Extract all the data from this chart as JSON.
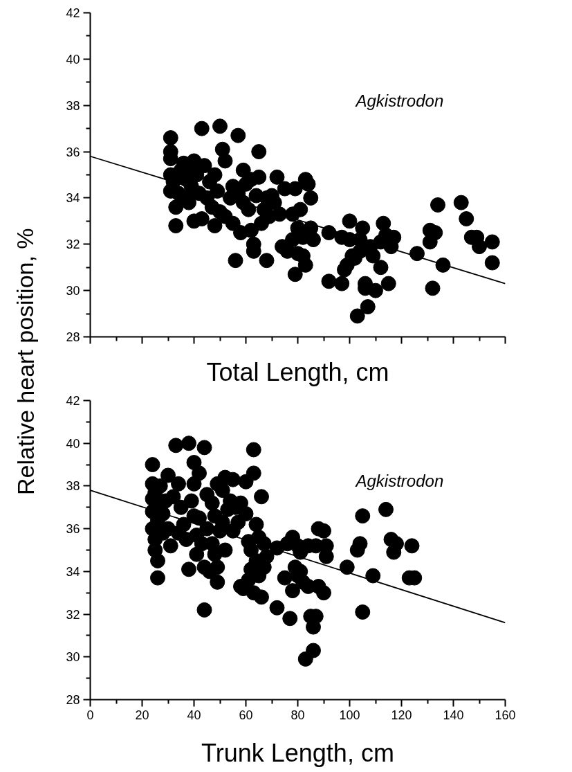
{
  "chart_data": [
    {
      "type": "scatter",
      "xlabel": "Total Length, cm",
      "ylabel": "Relative heart position, %",
      "annotations": [
        "Agkistrodon"
      ],
      "xlim": [
        0,
        160
      ],
      "ylim": [
        28,
        42
      ],
      "xticks": [
        0,
        20,
        40,
        60,
        80,
        100,
        120,
        140,
        160
      ],
      "yticks": [
        28,
        30,
        32,
        34,
        36,
        38,
        40,
        42
      ],
      "tick_labels": "y",
      "grid": false,
      "series": [
        {
          "marker": "circle",
          "color": "#000000",
          "x": [
            31,
            31,
            31,
            31,
            31,
            32,
            33,
            33,
            34,
            35,
            36,
            37,
            37,
            38,
            38,
            39,
            40,
            40,
            41,
            42,
            43,
            43,
            44,
            45,
            46,
            47,
            48,
            48,
            49,
            50,
            50,
            51,
            52,
            52,
            54,
            55,
            55,
            56,
            57,
            57,
            58,
            59,
            59,
            60,
            61,
            62,
            62,
            63,
            63,
            64,
            65,
            65,
            66,
            67,
            68,
            68,
            69,
            70,
            71,
            72,
            73,
            74,
            75,
            76,
            78,
            78,
            79,
            79,
            80,
            80,
            81,
            82,
            82,
            83,
            83,
            84,
            85,
            85,
            86,
            92,
            92,
            97,
            97,
            98,
            99,
            100,
            100,
            101,
            102,
            103,
            104,
            104,
            105,
            106,
            106,
            107,
            108,
            109,
            110,
            112,
            112,
            113,
            114,
            115,
            116,
            117,
            126,
            131,
            131,
            132,
            133,
            134,
            136,
            143,
            145,
            147,
            149,
            150,
            155,
            155
          ],
          "values": [
            36.6,
            36.0,
            35.7,
            35.0,
            34.3,
            34.7,
            33.6,
            32.8,
            34.2,
            35.2,
            35.5,
            34.8,
            34.0,
            35.4,
            33.8,
            34.5,
            35.6,
            33.0,
            35.0,
            34.2,
            37.0,
            33.1,
            35.4,
            34.0,
            34.7,
            33.6,
            35.0,
            32.8,
            34.3,
            37.1,
            33.4,
            36.1,
            35.6,
            33.2,
            34.0,
            34.5,
            32.9,
            31.3,
            36.7,
            34.2,
            32.5,
            35.2,
            33.8,
            34.6,
            33.5,
            32.6,
            34.8,
            32.0,
            31.7,
            34.1,
            36.0,
            34.9,
            32.9,
            33.5,
            31.3,
            34.0,
            33.2,
            34.1,
            33.8,
            34.9,
            33.3,
            31.9,
            34.4,
            31.7,
            33.3,
            32.2,
            30.7,
            34.4,
            32.7,
            31.6,
            33.5,
            31.5,
            32.3,
            34.8,
            31.1,
            34.6,
            32.7,
            34.0,
            32.2,
            30.4,
            32.5,
            30.3,
            32.3,
            30.9,
            31.1,
            33.0,
            32.2,
            31.5,
            31.4,
            28.9,
            31.7,
            32.2,
            32.7,
            30.1,
            30.3,
            29.3,
            31.9,
            31.5,
            30.0,
            31.0,
            32.1,
            32.9,
            32.4,
            30.3,
            31.9,
            32.3,
            31.6,
            32.1,
            32.6,
            30.1,
            32.5,
            33.7,
            31.1,
            33.8,
            33.1,
            32.3,
            32.3,
            31.9,
            32.1,
            31.2
          ]
        },
        {
          "type": "line",
          "color": "#000000",
          "x": [
            0,
            160
          ],
          "values": [
            35.8,
            30.3
          ]
        }
      ]
    },
    {
      "type": "scatter",
      "xlabel": "Trunk Length, cm",
      "annotations": [
        "Agkistrodon"
      ],
      "xlim": [
        0,
        160
      ],
      "ylim": [
        28,
        42
      ],
      "xticks": [
        0,
        20,
        40,
        60,
        80,
        100,
        120,
        140,
        160
      ],
      "yticks": [
        28,
        30,
        32,
        34,
        36,
        38,
        40,
        42
      ],
      "grid": false,
      "series": [
        {
          "marker": "circle",
          "color": "#000000",
          "x": [
            24,
            24,
            24,
            24,
            24,
            25,
            25,
            25,
            26,
            26,
            26,
            27,
            27,
            28,
            28,
            29,
            30,
            30,
            31,
            32,
            33,
            34,
            34,
            35,
            36,
            37,
            38,
            38,
            39,
            40,
            40,
            40,
            41,
            41,
            42,
            42,
            43,
            44,
            44,
            44,
            45,
            45,
            46,
            47,
            47,
            48,
            48,
            49,
            49,
            49,
            50,
            51,
            51,
            52,
            52,
            53,
            54,
            55,
            55,
            56,
            57,
            58,
            58,
            59,
            60,
            60,
            61,
            61,
            62,
            62,
            63,
            63,
            63,
            64,
            64,
            65,
            65,
            66,
            66,
            67,
            67,
            68,
            72,
            72,
            75,
            76,
            77,
            78,
            78,
            79,
            80,
            80,
            81,
            81,
            82,
            83,
            84,
            84,
            85,
            86,
            86,
            87,
            87,
            88,
            88,
            90,
            90,
            91,
            91,
            99,
            103,
            104,
            105,
            105,
            109,
            114,
            116,
            117,
            118,
            123,
            124,
            125
          ],
          "values": [
            39.0,
            38.1,
            37.4,
            36.8,
            36.0,
            37.7,
            35.5,
            35.0,
            34.5,
            33.7,
            36.4,
            37.2,
            38.0,
            36.7,
            35.8,
            37.3,
            38.5,
            36.0,
            35.2,
            37.5,
            39.9,
            38.1,
            35.8,
            37.0,
            36.2,
            35.5,
            34.1,
            40.0,
            37.3,
            39.1,
            38.1,
            36.6,
            35.7,
            34.8,
            38.6,
            36.5,
            35.3,
            39.8,
            34.2,
            32.2,
            37.6,
            36.0,
            34.0,
            37.2,
            35.3,
            36.6,
            34.8,
            38.1,
            33.5,
            34.2,
            35.9,
            37.8,
            36.3,
            38.4,
            35.0,
            36.9,
            37.3,
            38.3,
            35.9,
            37.0,
            36.3,
            33.3,
            37.2,
            33.2,
            38.2,
            36.7,
            35.4,
            33.6,
            35.0,
            34.1,
            39.7,
            38.6,
            33.0,
            36.2,
            34.5,
            35.6,
            33.8,
            32.8,
            37.5,
            35.3,
            34.2,
            34.7,
            35.1,
            32.3,
            33.7,
            35.3,
            31.8,
            35.6,
            33.1,
            34.2,
            35.2,
            33.8,
            34.9,
            34.0,
            33.5,
            29.9,
            35.2,
            33.3,
            31.9,
            30.3,
            31.4,
            31.9,
            35.2,
            36.0,
            33.3,
            35.9,
            33.0,
            34.7,
            35.2,
            34.2,
            35.0,
            35.3,
            32.1,
            36.6,
            33.8,
            36.9,
            35.5,
            34.9,
            35.3,
            33.7,
            35.2,
            33.7
          ]
        },
        {
          "type": "line",
          "color": "#000000",
          "x": [
            0,
            160
          ],
          "values": [
            37.8,
            31.6
          ]
        }
      ]
    }
  ]
}
